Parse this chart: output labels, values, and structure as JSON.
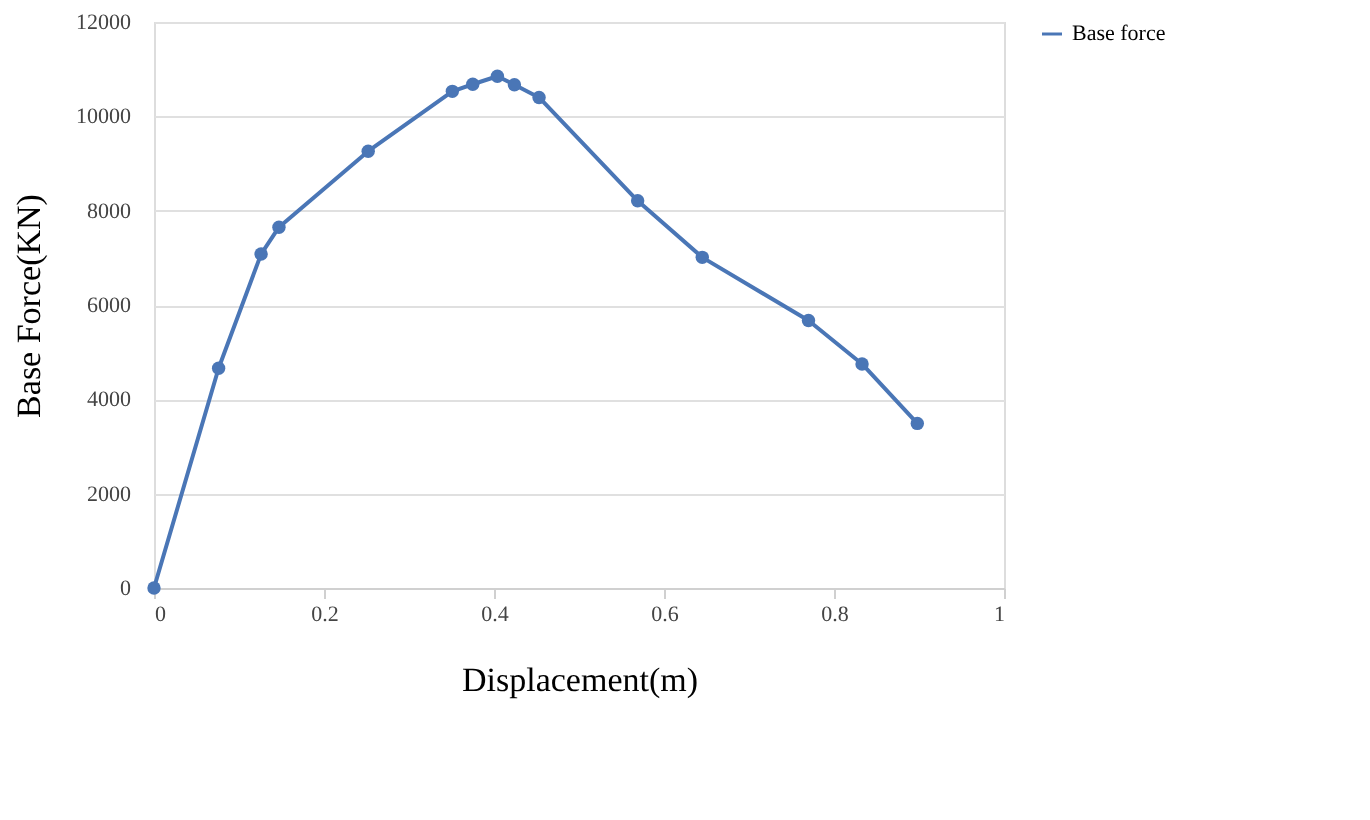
{
  "chart_data": {
    "type": "line",
    "xlabel": "Displacement(m)",
    "ylabel": "Base Force(KN)",
    "xlim": [
      0,
      1
    ],
    "xticks": [
      0,
      0.2,
      0.4,
      0.6,
      0.8,
      1
    ],
    "ylim": [
      0,
      12000
    ],
    "yticks": [
      0,
      2000,
      4000,
      6000,
      8000,
      10000,
      12000
    ],
    "grid": "y",
    "legend": "right",
    "marker": "circle",
    "line_style": "solid",
    "series": [
      {
        "name": "Base force",
        "color": "#4a76b6",
        "x": [
          0,
          0.076,
          0.126,
          0.147,
          0.252,
          0.351,
          0.375,
          0.404,
          0.424,
          0.453,
          0.569,
          0.645,
          0.77,
          0.833,
          0.898
        ],
        "values": [
          0,
          4660,
          7080,
          7650,
          9260,
          10530,
          10680,
          10850,
          10670,
          10400,
          8210,
          7010,
          5670,
          4750,
          3490
        ]
      }
    ]
  }
}
